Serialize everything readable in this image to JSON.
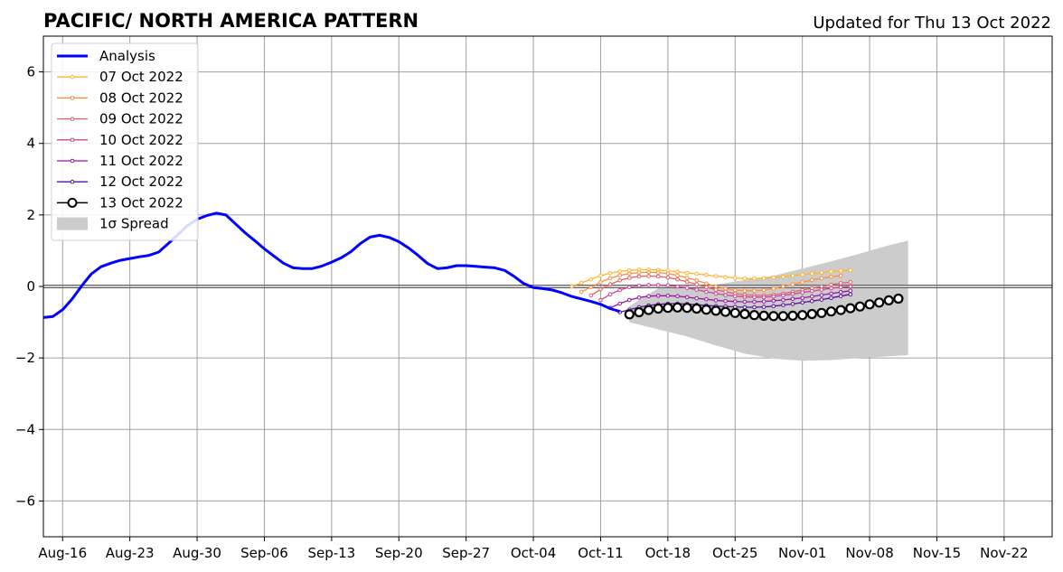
{
  "chart_data": {
    "type": "line",
    "title": "PACIFIC/ NORTH AMERICA PATTERN",
    "subtitle": "Updated for Thu 13 Oct 2022",
    "xlabel": "",
    "ylabel": "",
    "x_axis": {
      "start": "2022-08-14",
      "end": "2022-11-27",
      "tick_dates": [
        "2022-08-16",
        "2022-08-23",
        "2022-08-30",
        "2022-09-06",
        "2022-09-13",
        "2022-09-20",
        "2022-09-27",
        "2022-10-04",
        "2022-10-11",
        "2022-10-18",
        "2022-10-25",
        "2022-11-01",
        "2022-11-08",
        "2022-11-15",
        "2022-11-22"
      ],
      "tick_labels": [
        "Aug-16",
        "Aug-23",
        "Aug-30",
        "Sep-06",
        "Sep-13",
        "Sep-20",
        "Sep-27",
        "Oct-04",
        "Oct-11",
        "Oct-18",
        "Oct-25",
        "Nov-01",
        "Nov-08",
        "Nov-15",
        "Nov-22"
      ]
    },
    "ylim": [
      -7,
      7
    ],
    "y_ticks": [
      -6,
      -4,
      -2,
      0,
      2,
      4,
      6
    ],
    "y_tick_labels": [
      "−6",
      "−4",
      "−2",
      "0",
      "2",
      "4",
      "6"
    ],
    "grid": true,
    "legend_position": "top-left",
    "analysis": {
      "name": "Analysis",
      "color": "#0000ff",
      "dates": [
        "2022-08-14",
        "2022-08-15",
        "2022-08-16",
        "2022-08-17",
        "2022-08-18",
        "2022-08-19",
        "2022-08-20",
        "2022-08-21",
        "2022-08-22",
        "2022-08-23",
        "2022-08-24",
        "2022-08-25",
        "2022-08-26",
        "2022-08-27",
        "2022-08-28",
        "2022-08-29",
        "2022-08-30",
        "2022-08-31",
        "2022-09-01",
        "2022-09-02",
        "2022-09-03",
        "2022-09-04",
        "2022-09-05",
        "2022-09-06",
        "2022-09-07",
        "2022-09-08",
        "2022-09-09",
        "2022-09-10",
        "2022-09-11",
        "2022-09-12",
        "2022-09-13",
        "2022-09-14",
        "2022-09-15",
        "2022-09-16",
        "2022-09-17",
        "2022-09-18",
        "2022-09-19",
        "2022-09-20",
        "2022-09-21",
        "2022-09-22",
        "2022-09-23",
        "2022-09-24",
        "2022-09-25",
        "2022-09-26",
        "2022-09-27",
        "2022-09-28",
        "2022-09-29",
        "2022-09-30",
        "2022-10-01",
        "2022-10-02",
        "2022-10-03",
        "2022-10-04",
        "2022-10-05",
        "2022-10-06",
        "2022-10-07",
        "2022-10-08",
        "2022-10-09",
        "2022-10-10",
        "2022-10-11",
        "2022-10-12",
        "2022-10-13"
      ],
      "values": [
        -0.87,
        -0.84,
        -0.65,
        -0.35,
        0.02,
        0.35,
        0.55,
        0.65,
        0.73,
        0.78,
        0.83,
        0.87,
        0.96,
        1.2,
        1.45,
        1.7,
        1.88,
        1.98,
        2.05,
        2.0,
        1.75,
        1.5,
        1.28,
        1.05,
        0.85,
        0.65,
        0.52,
        0.5,
        0.5,
        0.57,
        0.68,
        0.8,
        0.97,
        1.2,
        1.38,
        1.43,
        1.37,
        1.25,
        1.08,
        0.87,
        0.64,
        0.5,
        0.52,
        0.58,
        0.58,
        0.56,
        0.54,
        0.52,
        0.45,
        0.28,
        0.08,
        -0.03,
        -0.06,
        -0.1,
        -0.18,
        -0.28,
        -0.35,
        -0.42,
        -0.5,
        -0.62,
        -0.7
      ]
    },
    "forecasts": [
      {
        "name": "07 Oct 2022",
        "color": "#ffb52e",
        "start": "2022-10-08",
        "values": [
          0.0,
          0.1,
          0.2,
          0.3,
          0.37,
          0.42,
          0.45,
          0.47,
          0.47,
          0.46,
          0.44,
          0.41,
          0.38,
          0.35,
          0.32,
          0.29,
          0.26,
          0.24,
          0.22,
          0.22,
          0.23,
          0.25,
          0.27,
          0.3,
          0.33,
          0.36,
          0.39,
          0.42,
          0.44,
          0.45
        ]
      },
      {
        "name": "08 Oct 2022",
        "color": "#fb8d3d",
        "start": "2022-10-09",
        "values": [
          -0.15,
          -0.02,
          0.12,
          0.23,
          0.31,
          0.36,
          0.39,
          0.4,
          0.39,
          0.36,
          0.31,
          0.24,
          0.17,
          0.08,
          0.0,
          -0.06,
          -0.1,
          -0.12,
          -0.12,
          -0.1,
          -0.06,
          0.0,
          0.06,
          0.12,
          0.18,
          0.23,
          0.27,
          0.3
        ]
      },
      {
        "name": "09 Oct 2022",
        "color": "#e66065",
        "start": "2022-10-10",
        "values": [
          -0.25,
          -0.08,
          0.06,
          0.17,
          0.24,
          0.28,
          0.29,
          0.28,
          0.25,
          0.2,
          0.13,
          0.06,
          -0.02,
          -0.09,
          -0.15,
          -0.2,
          -0.23,
          -0.25,
          -0.25,
          -0.23,
          -0.2,
          -0.15,
          -0.1,
          -0.05,
          0.0,
          0.05,
          0.09,
          0.12
        ]
      },
      {
        "name": "10 Oct 2022",
        "color": "#cc4495",
        "start": "2022-10-11",
        "values": [
          -0.38,
          -0.22,
          -0.1,
          -0.02,
          0.02,
          0.04,
          0.04,
          0.03,
          0.0,
          -0.04,
          -0.09,
          -0.15,
          -0.2,
          -0.24,
          -0.27,
          -0.29,
          -0.3,
          -0.3,
          -0.28,
          -0.25,
          -0.21,
          -0.17,
          -0.13,
          -0.09,
          -0.05,
          -0.02,
          0.0
        ]
      },
      {
        "name": "11 Oct 2022",
        "color": "#9815a3",
        "start": "2022-10-12",
        "values": [
          -0.6,
          -0.48,
          -0.38,
          -0.31,
          -0.27,
          -0.26,
          -0.26,
          -0.27,
          -0.3,
          -0.33,
          -0.36,
          -0.39,
          -0.41,
          -0.42,
          -0.43,
          -0.43,
          -0.42,
          -0.4,
          -0.38,
          -0.35,
          -0.32,
          -0.28,
          -0.24,
          -0.2,
          -0.16,
          -0.12
        ]
      },
      {
        "name": "12 Oct 2022",
        "color": "#5a0e9e",
        "start": "2022-10-13",
        "values": [
          -0.72,
          -0.65,
          -0.58,
          -0.53,
          -0.5,
          -0.48,
          -0.48,
          -0.49,
          -0.51,
          -0.53,
          -0.55,
          -0.56,
          -0.57,
          -0.58,
          -0.58,
          -0.57,
          -0.55,
          -0.52,
          -0.49,
          -0.45,
          -0.41,
          -0.37,
          -0.32,
          -0.27,
          -0.22
        ]
      }
    ],
    "forecast_13": {
      "name": "13 Oct 2022",
      "color": "#000000",
      "start": "2022-10-14",
      "values": [
        -0.78,
        -0.72,
        -0.66,
        -0.62,
        -0.6,
        -0.59,
        -0.6,
        -0.62,
        -0.65,
        -0.68,
        -0.71,
        -0.74,
        -0.77,
        -0.8,
        -0.82,
        -0.83,
        -0.83,
        -0.82,
        -0.8,
        -0.77,
        -0.74,
        -0.7,
        -0.66,
        -0.61,
        -0.56,
        -0.5,
        -0.45,
        -0.39,
        -0.34
      ]
    },
    "spread": {
      "name": "1σ Spread",
      "color": "#cccccc",
      "dates": [
        "2022-10-14",
        "2022-10-17",
        "2022-10-20",
        "2022-10-23",
        "2022-10-26",
        "2022-10-29",
        "2022-11-01",
        "2022-11-04",
        "2022-11-07",
        "2022-11-10",
        "2022-11-12"
      ],
      "upper": [
        -0.55,
        -0.05,
        0.0,
        0.05,
        0.18,
        0.3,
        0.5,
        0.7,
        0.92,
        1.15,
        1.28
      ],
      "lower": [
        -1.0,
        -1.2,
        -1.4,
        -1.65,
        -1.88,
        -2.02,
        -2.08,
        -2.06,
        -2.0,
        -1.95,
        -1.92
      ]
    },
    "legend": [
      "Analysis",
      "07 Oct 2022",
      "08 Oct 2022",
      "09 Oct 2022",
      "10 Oct 2022",
      "11 Oct 2022",
      "12 Oct 2022",
      "13 Oct 2022",
      "1σ Spread"
    ]
  }
}
